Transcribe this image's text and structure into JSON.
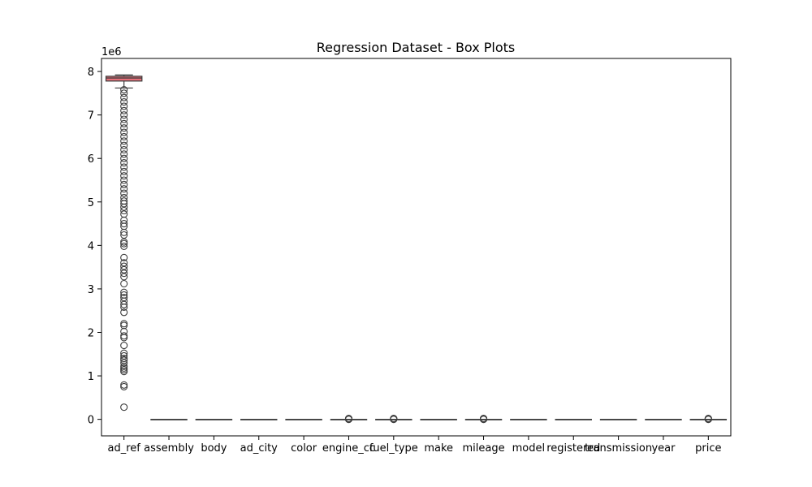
{
  "chart_data": {
    "type": "box",
    "title": "Regression Dataset - Box Plots",
    "xlabel": "",
    "ylabel": "",
    "y_offset_label": "1e6",
    "y_scale_multiplier": 1000000,
    "ylim": [
      -0.38,
      8.3
    ],
    "y_ticks": [
      0,
      1,
      2,
      3,
      4,
      5,
      6,
      7,
      8
    ],
    "y_tick_labels": [
      "0",
      "1",
      "2",
      "3",
      "4",
      "5",
      "6",
      "7",
      "8"
    ],
    "grid": false,
    "legend": "none",
    "categories": [
      "ad_ref",
      "assembly",
      "body",
      "ad_city",
      "color",
      "engine_cc",
      "fuel_type",
      "make",
      "mileage",
      "model",
      "registered",
      "transmission",
      "year",
      "price"
    ],
    "category_labels": [
      "ad_ref",
      "assembly",
      "body",
      "ad_city",
      "color",
      "engine_cc",
      "fuel_type",
      "make",
      "mileage",
      "model",
      "registered",
      "transmission",
      "year",
      "price"
    ],
    "box_colors": [
      "#e8707a",
      "#e07a5a",
      "#c89a3a",
      "#a8ac3c",
      "#7cb83e",
      "#3fba6a",
      "#3bb89a",
      "#3cb4b4",
      "#3bb0cc",
      "#58a4e0",
      "#9a8ee8",
      "#cc7ee6",
      "#e674cc",
      "#ea72a4"
    ],
    "boxes": [
      {
        "name": "ad_ref",
        "whisker_low": 7.62,
        "q1": 7.78,
        "median": 7.85,
        "q3": 7.89,
        "whisker_high": 7.92,
        "outliers": [
          0.28,
          0.75,
          0.79,
          1.1,
          1.14,
          1.18,
          1.22,
          1.3,
          1.36,
          1.4,
          1.46,
          1.52,
          1.7,
          1.88,
          1.92,
          2.02,
          2.16,
          2.2,
          2.46,
          2.58,
          2.64,
          2.72,
          2.8,
          2.86,
          2.92,
          3.12,
          3.28,
          3.36,
          3.44,
          3.52,
          3.6,
          3.72,
          3.98,
          4.04,
          4.08,
          4.24,
          4.3,
          4.44,
          4.5,
          4.58,
          4.72,
          4.8,
          4.88,
          4.96,
          5.02,
          5.1,
          5.2,
          5.3,
          5.4,
          5.5,
          5.6,
          5.7,
          5.8,
          5.9,
          6.0,
          6.1,
          6.2,
          6.3,
          6.4,
          6.5,
          6.6,
          6.7,
          6.8,
          6.9,
          7.0,
          7.1,
          7.2,
          7.3,
          7.4,
          7.5,
          7.58
        ]
      },
      {
        "name": "assembly",
        "whisker_low": 0,
        "q1": 0,
        "median": 0,
        "q3": 0,
        "whisker_high": 0,
        "outliers": []
      },
      {
        "name": "body",
        "whisker_low": 0,
        "q1": 0,
        "median": 0,
        "q3": 0,
        "whisker_high": 0,
        "outliers": []
      },
      {
        "name": "ad_city",
        "whisker_low": 0,
        "q1": 0,
        "median": 0,
        "q3": 0,
        "whisker_high": 0,
        "outliers": []
      },
      {
        "name": "color",
        "whisker_low": 0,
        "q1": 0,
        "median": 0,
        "q3": 0,
        "whisker_high": 0,
        "outliers": []
      },
      {
        "name": "engine_cc",
        "whisker_low": 0,
        "q1": 0,
        "median": 0,
        "q3": 0,
        "whisker_high": 0,
        "outliers": [
          0.0,
          0.01,
          0.02
        ]
      },
      {
        "name": "fuel_type",
        "whisker_low": 0,
        "q1": 0,
        "median": 0,
        "q3": 0,
        "whisker_high": 0,
        "outliers": [
          0.0,
          0.01,
          0.02
        ]
      },
      {
        "name": "make",
        "whisker_low": 0,
        "q1": 0,
        "median": 0,
        "q3": 0,
        "whisker_high": 0,
        "outliers": []
      },
      {
        "name": "mileage",
        "whisker_low": 0,
        "q1": 0,
        "median": 0,
        "q3": 0,
        "whisker_high": 0,
        "outliers": [
          0.0,
          0.01,
          0.02
        ]
      },
      {
        "name": "model",
        "whisker_low": 0,
        "q1": 0,
        "median": 0,
        "q3": 0,
        "whisker_high": 0,
        "outliers": []
      },
      {
        "name": "registered",
        "whisker_low": 0,
        "q1": 0,
        "median": 0,
        "q3": 0,
        "whisker_high": 0,
        "outliers": []
      },
      {
        "name": "transmission",
        "whisker_low": 0,
        "q1": 0,
        "median": 0,
        "q3": 0,
        "whisker_high": 0,
        "outliers": []
      },
      {
        "name": "year",
        "whisker_low": 0,
        "q1": 0,
        "median": 0,
        "q3": 0,
        "whisker_high": 0,
        "outliers": []
      },
      {
        "name": "price",
        "whisker_low": 0,
        "q1": 0,
        "median": 0,
        "q3": 0,
        "whisker_high": 0,
        "outliers": [
          0.0,
          0.01,
          0.02
        ]
      }
    ]
  }
}
